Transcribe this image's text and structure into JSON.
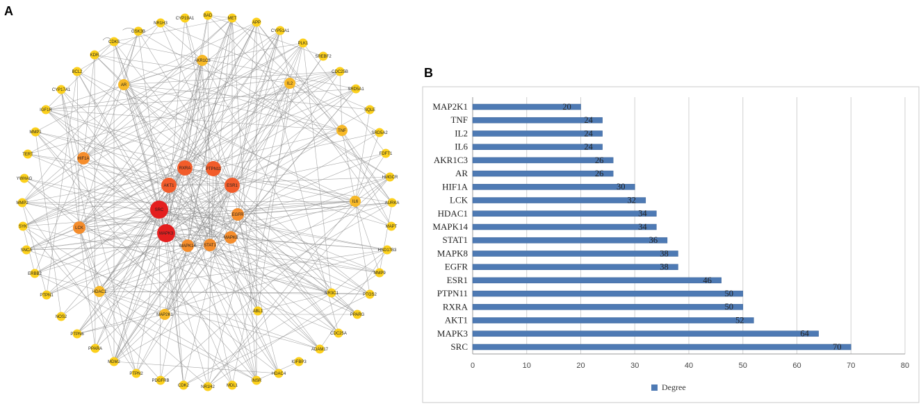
{
  "panel_a": {
    "letter": "A",
    "type": "network",
    "colors": {
      "edge": "#8a8a8a",
      "level_high": "#e41f1f",
      "level_mid": "#f25c2a",
      "level_orange": "#f58d2c",
      "level_low": "#f7b928",
      "level_min": "#fcd01c"
    },
    "nodes": [
      {
        "label": "SRC",
        "level": "high"
      },
      {
        "label": "MAPK3",
        "level": "high"
      },
      {
        "label": "AKT1",
        "level": "mid"
      },
      {
        "label": "RXRA",
        "level": "mid"
      },
      {
        "label": "PTPN11",
        "level": "mid"
      },
      {
        "label": "ESR1",
        "level": "mid"
      },
      {
        "label": "EGFR",
        "level": "orange"
      },
      {
        "label": "MAPK8",
        "level": "orange"
      },
      {
        "label": "STAT1",
        "level": "orange"
      },
      {
        "label": "MAPK14",
        "level": "orange"
      },
      {
        "label": "LCK",
        "level": "orange"
      },
      {
        "label": "HIF1A",
        "level": "orange"
      },
      {
        "label": "AR",
        "level": "low"
      },
      {
        "label": "AKR1C3",
        "level": "low"
      },
      {
        "label": "IL6",
        "level": "low"
      },
      {
        "label": "IL2",
        "level": "low"
      },
      {
        "label": "TNF",
        "level": "low"
      },
      {
        "label": "MAP2K1",
        "level": "low"
      },
      {
        "label": "HDAC1",
        "level": "low"
      },
      {
        "label": "NR1H3",
        "level": "min"
      },
      {
        "label": "CYP19A1",
        "level": "min"
      },
      {
        "label": "BAD",
        "level": "min"
      },
      {
        "label": "MET",
        "level": "min"
      },
      {
        "label": "APP",
        "level": "min"
      },
      {
        "label": "CYP51A1",
        "level": "min"
      },
      {
        "label": "PLK1",
        "level": "min"
      },
      {
        "label": "SREBF2",
        "level": "min"
      },
      {
        "label": "CDC25B",
        "level": "min"
      },
      {
        "label": "SRD5A1",
        "level": "min"
      },
      {
        "label": "SQLE",
        "level": "min"
      },
      {
        "label": "SRD5A2",
        "level": "min"
      },
      {
        "label": "FDFT1",
        "level": "min"
      },
      {
        "label": "HMGCR",
        "level": "min"
      },
      {
        "label": "AURKA",
        "level": "min"
      },
      {
        "label": "MAPT",
        "level": "min"
      },
      {
        "label": "HSD17B3",
        "level": "min"
      },
      {
        "label": "MMP9",
        "level": "min"
      },
      {
        "label": "PTGS2",
        "level": "min"
      },
      {
        "label": "NR3C1",
        "level": "min"
      },
      {
        "label": "PPARG",
        "level": "min"
      },
      {
        "label": "CDC25A",
        "level": "min"
      },
      {
        "label": "ADAM17",
        "level": "min"
      },
      {
        "label": "IGFBP3",
        "level": "min"
      },
      {
        "label": "HDAC4",
        "level": "min"
      },
      {
        "label": "INSR",
        "level": "min"
      },
      {
        "label": "MDL1",
        "level": "min"
      },
      {
        "label": "NR1H2",
        "level": "min"
      },
      {
        "label": "CDK2",
        "level": "min"
      },
      {
        "label": "PDGFRB",
        "level": "min"
      },
      {
        "label": "PTPN2",
        "level": "min"
      },
      {
        "label": "MDM2",
        "level": "min"
      },
      {
        "label": "PPARA",
        "level": "min"
      },
      {
        "label": "PTPN6",
        "level": "min"
      },
      {
        "label": "NOS2",
        "level": "min"
      },
      {
        "label": "PTPN1",
        "level": "min"
      },
      {
        "label": "ERBB2",
        "level": "min"
      },
      {
        "label": "SNCA",
        "level": "min"
      },
      {
        "label": "SYK",
        "level": "min"
      },
      {
        "label": "MMP2",
        "level": "min"
      },
      {
        "label": "YWHAG",
        "level": "min"
      },
      {
        "label": "TERT",
        "level": "min"
      },
      {
        "label": "MMP1",
        "level": "min"
      },
      {
        "label": "IGF1R",
        "level": "min"
      },
      {
        "label": "CYP17A1",
        "level": "min"
      },
      {
        "label": "BCL2",
        "level": "min"
      },
      {
        "label": "KDR",
        "level": "min"
      },
      {
        "label": "CDK5",
        "level": "min"
      },
      {
        "label": "GSK3B",
        "level": "min"
      },
      {
        "label": "ABL1",
        "level": "min"
      }
    ]
  },
  "panel_b": {
    "letter": "B",
    "colors": {
      "bar": "#4e7ab4",
      "bar_edge": "#3a6296",
      "grid": "#d0d0d0",
      "frame": "#c8c8c8",
      "axis": "#9a9a9a"
    },
    "chart_data": {
      "type": "bar",
      "orientation": "horizontal",
      "categories": [
        "MAP2K1",
        "TNF",
        "IL2",
        "IL6",
        "AKR1C3",
        "AR",
        "HIF1A",
        "LCK",
        "HDAC1",
        "MAPK14",
        "STAT1",
        "MAPK8",
        "EGFR",
        "ESR1",
        "PTPN11",
        "RXRA",
        "AKT1",
        "MAPK3",
        "SRC"
      ],
      "series": [
        {
          "name": "Degree",
          "values": [
            20,
            24,
            24,
            24,
            26,
            26,
            30,
            32,
            34,
            34,
            36,
            38,
            38,
            46,
            50,
            50,
            52,
            64,
            70
          ]
        }
      ],
      "xticks": [
        0,
        10,
        20,
        30,
        40,
        50,
        60,
        70,
        80
      ],
      "xlim": [
        0,
        80
      ],
      "legend": {
        "label": "Degree",
        "position": "bottom"
      }
    }
  }
}
